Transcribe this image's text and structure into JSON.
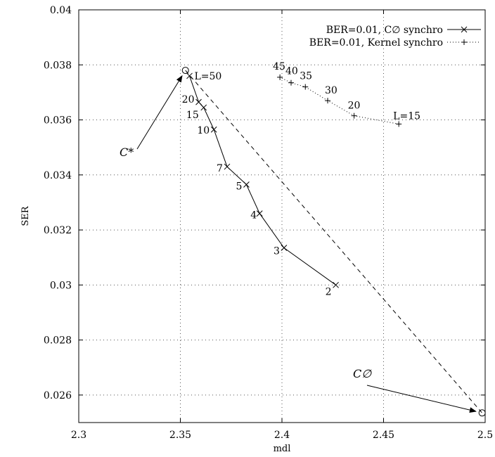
{
  "chart_data": {
    "type": "line",
    "xlabel": "mdl",
    "ylabel": "SER",
    "xlim": [
      2.3,
      2.5
    ],
    "ylim": [
      0.025,
      0.04
    ],
    "grid": true,
    "legend_position": "top-right",
    "x_ticks": [
      {
        "value": 2.3,
        "label": "2.3"
      },
      {
        "value": 2.35,
        "label": "2.35"
      },
      {
        "value": 2.4,
        "label": "2.4"
      },
      {
        "value": 2.45,
        "label": "2.45"
      },
      {
        "value": 2.5,
        "label": "2.5"
      }
    ],
    "y_ticks": [
      {
        "value": 0.026,
        "label": "0.026"
      },
      {
        "value": 0.028,
        "label": "0.028"
      },
      {
        "value": 0.03,
        "label": "0.03"
      },
      {
        "value": 0.032,
        "label": "0.032"
      },
      {
        "value": 0.034,
        "label": "0.034"
      },
      {
        "value": 0.036,
        "label": "0.036"
      },
      {
        "value": 0.038,
        "label": "0.038"
      },
      {
        "value": 0.04,
        "label": "0.04"
      }
    ],
    "series": [
      {
        "name": "BER=0.01, C∅ synchro",
        "style": "solid",
        "marker": "x",
        "points": [
          {
            "x": 2.4265,
            "y": 0.03,
            "label": "2"
          },
          {
            "x": 2.401,
            "y": 0.03135,
            "label": "3"
          },
          {
            "x": 2.389,
            "y": 0.0326,
            "label": "4"
          },
          {
            "x": 2.3825,
            "y": 0.03365,
            "label": "5"
          },
          {
            "x": 2.373,
            "y": 0.0343,
            "label": "7"
          },
          {
            "x": 2.3665,
            "y": 0.03565,
            "label": "10"
          },
          {
            "x": 2.3615,
            "y": 0.03645,
            "label": "15"
          },
          {
            "x": 2.359,
            "y": 0.03665,
            "label": "20"
          },
          {
            "x": 2.3545,
            "y": 0.0376,
            "label": "L=50"
          }
        ]
      },
      {
        "name": "BER=0.01, Kernel synchro",
        "style": "dotted",
        "marker": "+",
        "points": [
          {
            "x": 2.4575,
            "y": 0.03585,
            "label": "L=15"
          },
          {
            "x": 2.4355,
            "y": 0.03615,
            "label": "20"
          },
          {
            "x": 2.4225,
            "y": 0.0367,
            "label": "30"
          },
          {
            "x": 2.4115,
            "y": 0.0372,
            "label": "35"
          },
          {
            "x": 2.4045,
            "y": 0.03735,
            "label": "40"
          },
          {
            "x": 2.399,
            "y": 0.03755,
            "label": "45"
          }
        ]
      }
    ],
    "annotations": [
      {
        "text": "C*",
        "points_to": {
          "x": 2.3525,
          "y": 0.0378
        }
      },
      {
        "text": "C∅",
        "points_to": {
          "x": 2.4985,
          "y": 0.02535
        }
      }
    ],
    "reference_line": {
      "from": {
        "x": 2.3525,
        "y": 0.0378
      },
      "to": {
        "x": 2.4985,
        "y": 0.02535
      },
      "style": "dashed"
    }
  }
}
